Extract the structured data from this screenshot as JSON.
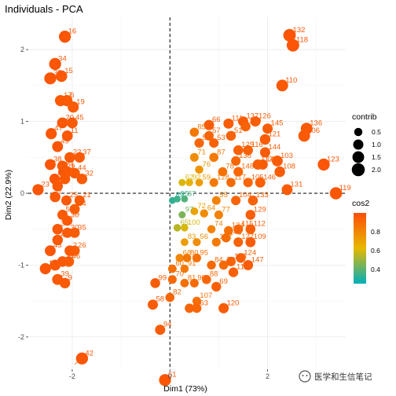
{
  "chart_data": {
    "type": "scatter",
    "title": "Individuals - PCA",
    "xlabel": "Dim1 (73%)",
    "ylabel": "Dim2 (22.9%)",
    "xlim": [
      -2.9,
      3.6
    ],
    "ylim": [
      -2.45,
      2.45
    ],
    "x_ticks": [
      -2,
      0,
      2
    ],
    "y_ticks": [
      -2,
      -1,
      0,
      1,
      2
    ],
    "x_tick_labels": [
      "-2",
      "0",
      "2"
    ],
    "y_tick_labels": [
      "-2",
      "-1",
      "0",
      "1",
      "2"
    ],
    "grid": true,
    "reference_lines": {
      "x": 0,
      "y": 0,
      "style": "dashed"
    },
    "legend": {
      "placement": "right",
      "size_title": "contrib",
      "size_values": [
        "0.5",
        "1.0",
        "1.5",
        "2.0"
      ],
      "color_title": "cos2",
      "color_ticks": [
        "0.8",
        "0.6",
        "0.4"
      ],
      "color_scale": [
        "#00AFBB",
        "#E7B800",
        "#FC4E07"
      ]
    },
    "points": [
      {
        "id": "16",
        "x": -2.15,
        "y": 2.18,
        "cos2": 0.97,
        "contrib": 1.6
      },
      {
        "id": "34",
        "x": -2.35,
        "y": 1.8,
        "cos2": 0.97,
        "contrib": 1.6
      },
      {
        "id": "33",
        "x": -2.45,
        "y": 1.6,
        "cos2": 0.97,
        "contrib": 1.6
      },
      {
        "id": "15",
        "x": -2.22,
        "y": 1.63,
        "cos2": 0.96,
        "contrib": 1.4
      },
      {
        "id": "17",
        "x": -2.24,
        "y": 1.29,
        "cos2": 0.96,
        "contrib": 1.3
      },
      {
        "id": "6",
        "x": -2.11,
        "y": 1.29,
        "cos2": 0.96,
        "contrib": 1.3
      },
      {
        "id": "19",
        "x": -1.98,
        "y": 1.2,
        "cos2": 0.95,
        "contrib": 1.3
      },
      {
        "id": "20",
        "x": -2.2,
        "y": 0.98,
        "cos2": 0.96,
        "contrib": 1.2
      },
      {
        "id": "45",
        "x": -2.0,
        "y": 0.98,
        "cos2": 0.95,
        "contrib": 1.2
      },
      {
        "id": "47",
        "x": -2.43,
        "y": 0.83,
        "cos2": 0.97,
        "contrib": 1.3
      },
      {
        "id": "11",
        "x": -2.1,
        "y": 0.8,
        "cos2": 0.96,
        "contrib": 1.2
      },
      {
        "id": "49",
        "x": -2.3,
        "y": 0.65,
        "cos2": 0.97,
        "contrib": 1.2
      },
      {
        "id": "22",
        "x": -2.05,
        "y": 0.5,
        "cos2": 0.96,
        "contrib": 1.1
      },
      {
        "id": "37",
        "x": -1.85,
        "y": 0.5,
        "cos2": 0.95,
        "contrib": 1.1
      },
      {
        "id": "38",
        "x": -2.45,
        "y": 0.4,
        "cos2": 0.97,
        "contrib": 1.2
      },
      {
        "id": "28",
        "x": -2.2,
        "y": 0.38,
        "cos2": 0.96,
        "contrib": 1.1
      },
      {
        "id": "29",
        "x": -2.18,
        "y": 0.3,
        "cos2": 0.96,
        "contrib": 1.1
      },
      {
        "id": "1",
        "x": -2.1,
        "y": 0.3,
        "cos2": 0.96,
        "contrib": 1.1
      },
      {
        "id": "41",
        "x": -2.36,
        "y": 0.2,
        "cos2": 0.97,
        "contrib": 1.1
      },
      {
        "id": "18",
        "x": -2.15,
        "y": 0.2,
        "cos2": 0.96,
        "contrib": 1.1
      },
      {
        "id": "44",
        "x": -1.95,
        "y": 0.28,
        "cos2": 0.95,
        "contrib": 1.1
      },
      {
        "id": "32",
        "x": -1.8,
        "y": 0.2,
        "cos2": 0.95,
        "contrib": 1.1
      },
      {
        "id": "5",
        "x": -2.3,
        "y": 0.1,
        "cos2": 0.96,
        "contrib": 1.1
      },
      {
        "id": "23",
        "x": -2.7,
        "y": 0.05,
        "cos2": 0.97,
        "contrib": 1.3
      },
      {
        "id": "21",
        "x": -1.85,
        "y": -0.1,
        "cos2": 0.95,
        "contrib": 1.0
      },
      {
        "id": "7",
        "x": -2.35,
        "y": -0.05,
        "cos2": 0.96,
        "contrib": 1.1
      },
      {
        "id": "25",
        "x": -2.12,
        "y": -0.1,
        "cos2": 0.96,
        "contrib": 1.0
      },
      {
        "id": "24",
        "x": -1.95,
        "y": -0.22,
        "cos2": 0.94,
        "contrib": 1.0
      },
      {
        "id": "50",
        "x": -2.2,
        "y": -0.3,
        "cos2": 0.96,
        "contrib": 1.0
      },
      {
        "id": "36",
        "x": -2.1,
        "y": -0.38,
        "cos2": 0.96,
        "contrib": 1.0
      },
      {
        "id": "3",
        "x": -2.3,
        "y": -0.5,
        "cos2": 0.96,
        "contrib": 1.1
      },
      {
        "id": "30",
        "x": -2.1,
        "y": -0.55,
        "cos2": 0.95,
        "contrib": 1.0
      },
      {
        "id": "35",
        "x": -1.95,
        "y": -0.55,
        "cos2": 0.95,
        "contrib": 1.0
      },
      {
        "id": "48",
        "x": -2.3,
        "y": -0.65,
        "cos2": 0.96,
        "contrib": 1.1
      },
      {
        "id": "26",
        "x": -1.95,
        "y": -0.8,
        "cos2": 0.95,
        "contrib": 1.0
      },
      {
        "id": "43",
        "x": -2.45,
        "y": -0.8,
        "cos2": 0.97,
        "contrib": 1.2
      },
      {
        "id": "2",
        "x": -2.05,
        "y": -0.8,
        "cos2": 0.96,
        "contrib": 1.1
      },
      {
        "id": "13",
        "x": -2.2,
        "y": -0.95,
        "cos2": 0.96,
        "contrib": 1.1
      },
      {
        "id": "46",
        "x": -2.07,
        "y": -0.95,
        "cos2": 0.95,
        "contrib": 1.1
      },
      {
        "id": "14",
        "x": -2.55,
        "y": -1.05,
        "cos2": 0.97,
        "contrib": 1.3
      },
      {
        "id": "4",
        "x": -2.35,
        "y": -1.0,
        "cos2": 0.96,
        "contrib": 1.2
      },
      {
        "id": "39",
        "x": -2.3,
        "y": -1.2,
        "cos2": 0.96,
        "contrib": 1.2
      },
      {
        "id": "9",
        "x": -2.15,
        "y": -1.25,
        "cos2": 0.96,
        "contrib": 1.1
      },
      {
        "id": "42",
        "x": -1.8,
        "y": -2.3,
        "cos2": 0.97,
        "contrib": 1.6
      },
      {
        "id": "132",
        "x": 2.45,
        "y": 2.2,
        "cos2": 0.97,
        "contrib": 1.8
      },
      {
        "id": "118",
        "x": 2.52,
        "y": 2.06,
        "cos2": 0.97,
        "contrib": 1.8
      },
      {
        "id": "110",
        "x": 2.3,
        "y": 1.5,
        "cos2": 0.96,
        "contrib": 1.5
      },
      {
        "id": "66",
        "x": 0.8,
        "y": 0.95,
        "cos2": 0.95,
        "contrib": 1.0
      },
      {
        "id": "111",
        "x": 1.2,
        "y": 0.97,
        "cos2": 0.95,
        "contrib": 1.0
      },
      {
        "id": "137",
        "x": 1.5,
        "y": 1.0,
        "cos2": 0.95,
        "contrib": 1.0
      },
      {
        "id": "149",
        "x": 1.55,
        "y": 0.93,
        "cos2": 0.93,
        "contrib": 0.9
      },
      {
        "id": "126",
        "x": 1.75,
        "y": 1.0,
        "cos2": 0.95,
        "contrib": 1.0
      },
      {
        "id": "145",
        "x": 2.0,
        "y": 0.9,
        "cos2": 0.95,
        "contrib": 1.0
      },
      {
        "id": "136",
        "x": 2.8,
        "y": 0.9,
        "cos2": 0.96,
        "contrib": 1.5
      },
      {
        "id": "106",
        "x": 2.75,
        "y": 0.8,
        "cos2": 0.96,
        "contrib": 1.5
      },
      {
        "id": "123",
        "x": 3.15,
        "y": 0.4,
        "cos2": 0.97,
        "contrib": 1.6
      },
      {
        "id": "119",
        "x": 3.4,
        "y": 0.0,
        "cos2": 0.97,
        "contrib": 1.7
      },
      {
        "id": "85",
        "x": 0.5,
        "y": 0.85,
        "cos2": 0.85,
        "contrib": 0.7
      },
      {
        "id": "57",
        "x": 0.8,
        "y": 0.8,
        "cos2": 0.92,
        "contrib": 0.8
      },
      {
        "id": "52",
        "x": 0.6,
        "y": 0.7,
        "cos2": 0.92,
        "contrib": 0.8
      },
      {
        "id": "53",
        "x": 0.9,
        "y": 0.7,
        "cos2": 0.93,
        "contrib": 0.8
      },
      {
        "id": "51",
        "x": 1.25,
        "y": 0.8,
        "cos2": 0.93,
        "contrib": 0.9
      },
      {
        "id": "121",
        "x": 1.95,
        "y": 0.75,
        "cos2": 0.95,
        "contrib": 1.1
      },
      {
        "id": "116",
        "x": 1.6,
        "y": 0.6,
        "cos2": 0.93,
        "contrib": 0.9
      },
      {
        "id": "144",
        "x": 1.95,
        "y": 0.57,
        "cos2": 0.95,
        "contrib": 1.0
      },
      {
        "id": "125",
        "x": 1.4,
        "y": 0.6,
        "cos2": 0.93,
        "contrib": 0.9
      },
      {
        "id": "71",
        "x": 0.5,
        "y": 0.5,
        "cos2": 0.78,
        "contrib": 0.6
      },
      {
        "id": "87",
        "x": 0.9,
        "y": 0.5,
        "cos2": 0.85,
        "contrib": 0.7
      },
      {
        "id": "138",
        "x": 1.35,
        "y": 0.45,
        "cos2": 0.92,
        "contrib": 0.8
      },
      {
        "id": "140",
        "x": 1.9,
        "y": 0.4,
        "cos2": 0.95,
        "contrib": 1.0
      },
      {
        "id": "103",
        "x": 2.2,
        "y": 0.45,
        "cos2": 0.95,
        "contrib": 1.2
      },
      {
        "id": "113",
        "x": 1.8,
        "y": 0.4,
        "cos2": 0.94,
        "contrib": 1.0
      },
      {
        "id": "108",
        "x": 2.25,
        "y": 0.3,
        "cos2": 0.95,
        "contrib": 1.1
      },
      {
        "id": "76",
        "x": 0.6,
        "y": 0.33,
        "cos2": 0.75,
        "contrib": 0.5
      },
      {
        "id": "78",
        "x": 1.08,
        "y": 0.3,
        "cos2": 0.88,
        "contrib": 0.7
      },
      {
        "id": "148",
        "x": 1.4,
        "y": 0.3,
        "cos2": 0.92,
        "contrib": 0.8
      },
      {
        "id": "146",
        "x": 1.85,
        "y": 0.15,
        "cos2": 0.94,
        "contrib": 1.0
      },
      {
        "id": "131",
        "x": 2.4,
        "y": 0.05,
        "cos2": 0.95,
        "contrib": 1.2
      },
      {
        "id": "62",
        "x": 0.25,
        "y": 0.15,
        "cos2": 0.6,
        "contrib": 0.3
      },
      {
        "id": "92",
        "x": 0.4,
        "y": 0.15,
        "cos2": 0.65,
        "contrib": 0.35
      },
      {
        "id": "59",
        "x": 0.6,
        "y": 0.15,
        "cos2": 0.72,
        "contrib": 0.4
      },
      {
        "id": "128",
        "x": 0.9,
        "y": 0.15,
        "cos2": 0.85,
        "contrib": 0.6
      },
      {
        "id": "117",
        "x": 1.25,
        "y": 0.15,
        "cos2": 0.9,
        "contrib": 0.7
      },
      {
        "id": "105",
        "x": 1.6,
        "y": 0.15,
        "cos2": 0.92,
        "contrib": 0.8
      },
      {
        "id": "89",
        "x": 0.05,
        "y": -0.1,
        "cos2": 0.33,
        "contrib": 0.25
      },
      {
        "id": "95",
        "x": 0.15,
        "y": -0.08,
        "cos2": 0.35,
        "contrib": 0.25
      },
      {
        "id": "67",
        "x": 0.3,
        "y": -0.08,
        "cos2": 0.38,
        "contrib": 0.25
      },
      {
        "id": "55",
        "x": 0.95,
        "y": -0.1,
        "cos2": 0.82,
        "contrib": 0.6
      },
      {
        "id": "104",
        "x": 1.35,
        "y": -0.1,
        "cos2": 0.92,
        "contrib": 0.8
      },
      {
        "id": "133",
        "x": 1.7,
        "y": -0.1,
        "cos2": 0.93,
        "contrib": 0.9
      },
      {
        "id": "97",
        "x": 0.25,
        "y": -0.3,
        "cos2": 0.45,
        "contrib": 0.3
      },
      {
        "id": "72",
        "x": 0.5,
        "y": -0.25,
        "cos2": 0.7,
        "contrib": 0.4
      },
      {
        "id": "64",
        "x": 0.7,
        "y": -0.28,
        "cos2": 0.78,
        "contrib": 0.5
      },
      {
        "id": "77",
        "x": 1.0,
        "y": -0.3,
        "cos2": 0.82,
        "contrib": 0.6
      },
      {
        "id": "129",
        "x": 1.65,
        "y": -0.3,
        "cos2": 0.94,
        "contrib": 0.9
      },
      {
        "id": "65",
        "x": 0.15,
        "y": -0.48,
        "cos2": 0.55,
        "contrib": 0.35
      },
      {
        "id": "100",
        "x": 0.3,
        "y": -0.48,
        "cos2": 0.6,
        "contrib": 0.35
      },
      {
        "id": "74",
        "x": 0.85,
        "y": -0.5,
        "cos2": 0.82,
        "contrib": 0.5
      },
      {
        "id": "134",
        "x": 1.2,
        "y": -0.52,
        "cos2": 0.88,
        "contrib": 0.7
      },
      {
        "id": "115",
        "x": 1.4,
        "y": -0.5,
        "cos2": 0.93,
        "contrib": 0.8
      },
      {
        "id": "112",
        "x": 1.65,
        "y": -0.5,
        "cos2": 0.94,
        "contrib": 0.9
      },
      {
        "id": "83",
        "x": 0.3,
        "y": -0.68,
        "cos2": 0.72,
        "contrib": 0.4
      },
      {
        "id": "56",
        "x": 0.55,
        "y": -0.68,
        "cos2": 0.78,
        "contrib": 0.45
      },
      {
        "id": "122",
        "x": 0.95,
        "y": -0.68,
        "cos2": 0.85,
        "contrib": 0.6
      },
      {
        "id": "143",
        "x": 1.15,
        "y": -0.62,
        "cos2": 0.9,
        "contrib": 0.7
      },
      {
        "id": "127",
        "x": 1.4,
        "y": -0.68,
        "cos2": 0.93,
        "contrib": 0.8
      },
      {
        "id": "109",
        "x": 1.65,
        "y": -0.68,
        "cos2": 0.95,
        "contrib": 0.95
      },
      {
        "id": "68",
        "x": 0.2,
        "y": -0.9,
        "cos2": 0.8,
        "contrib": 0.5
      },
      {
        "id": "80",
        "x": 0.35,
        "y": -0.9,
        "cos2": 0.85,
        "contrib": 0.55
      },
      {
        "id": "95",
        "x": 0.55,
        "y": -0.9,
        "cos2": 0.88,
        "contrib": 0.6
      },
      {
        "id": "124",
        "x": 1.45,
        "y": -0.9,
        "cos2": 0.94,
        "contrib": 0.85
      },
      {
        "id": "84",
        "x": 0.85,
        "y": -1.0,
        "cos2": 0.9,
        "contrib": 0.65
      },
      {
        "id": "73",
        "x": 1.1,
        "y": -1.0,
        "cos2": 0.9,
        "contrib": 0.7
      },
      {
        "id": "135",
        "x": 1.25,
        "y": -0.95,
        "cos2": 0.93,
        "contrib": 0.8
      },
      {
        "id": "147",
        "x": 1.6,
        "y": -1.0,
        "cos2": 0.95,
        "contrib": 0.95
      },
      {
        "id": "60",
        "x": 0.05,
        "y": -1.05,
        "cos2": 0.88,
        "contrib": 0.55
      },
      {
        "id": "91",
        "x": 0.3,
        "y": -1.05,
        "cos2": 0.85,
        "contrib": 0.5
      },
      {
        "id": "114",
        "x": 1.3,
        "y": -1.1,
        "cos2": 0.94,
        "contrib": 0.85
      },
      {
        "id": "70",
        "x": 0.05,
        "y": -1.2,
        "cos2": 0.9,
        "contrib": 0.6
      },
      {
        "id": "81",
        "x": 0.3,
        "y": -1.25,
        "cos2": 0.88,
        "contrib": 0.55
      },
      {
        "id": "90",
        "x": 0.5,
        "y": -1.25,
        "cos2": 0.9,
        "contrib": 0.6
      },
      {
        "id": "88",
        "x": 0.75,
        "y": -1.2,
        "cos2": 0.92,
        "contrib": 0.7
      },
      {
        "id": "69",
        "x": 0.95,
        "y": -1.3,
        "cos2": 0.94,
        "contrib": 0.85
      },
      {
        "id": "99",
        "x": -0.3,
        "y": -1.25,
        "cos2": 0.95,
        "contrib": 0.9
      },
      {
        "id": "107",
        "x": 0.55,
        "y": -1.5,
        "cos2": 0.88,
        "contrib": 0.6
      },
      {
        "id": "82",
        "x": 0.0,
        "y": -1.45,
        "cos2": 0.92,
        "contrib": 0.7
      },
      {
        "id": "58",
        "x": -0.35,
        "y": -1.55,
        "cos2": 0.95,
        "contrib": 1.0
      },
      {
        "id": "54",
        "x": 0.4,
        "y": -1.6,
        "cos2": 0.92,
        "contrib": 0.75
      },
      {
        "id": "63",
        "x": 0.55,
        "y": -1.6,
        "cos2": 0.92,
        "contrib": 0.75
      },
      {
        "id": "120",
        "x": 1.1,
        "y": -1.6,
        "cos2": 0.95,
        "contrib": 1.0
      },
      {
        "id": "94",
        "x": -0.2,
        "y": -1.9,
        "cos2": 0.95,
        "contrib": 1.0
      },
      {
        "id": "61",
        "x": -0.1,
        "y": -2.6,
        "cos2": 0.97,
        "contrib": 1.6
      }
    ],
    "connector_lines": [
      {
        "from": "16",
        "x1": -2.15,
        "y1": 2.18,
        "x2": -2.05,
        "y2": 2.2
      },
      {
        "from": "21",
        "x1": -1.85,
        "y1": -0.1,
        "x2": -1.78,
        "y2": -0.1
      },
      {
        "from": "24",
        "x1": -1.95,
        "y1": -0.22,
        "x2": -1.85,
        "y2": -0.3
      },
      {
        "from": "42",
        "x1": -1.8,
        "y1": -2.3,
        "x2": -1.95,
        "y2": -2.38
      }
    ]
  },
  "watermark": {
    "text": "医学和生信笔记"
  }
}
